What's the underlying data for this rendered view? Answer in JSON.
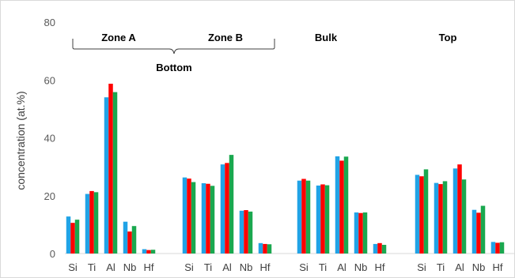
{
  "chart_data": {
    "type": "bar",
    "ylabel": "concentration (at.%)",
    "ylim": [
      0,
      80
    ],
    "yticks": [
      "0",
      "20",
      "40",
      "60",
      "80"
    ],
    "grid": false,
    "groups": [
      {
        "categories": [
          "Si",
          "Ti",
          "Al",
          "Nb",
          "Hf"
        ],
        "values": [
          [
            12.8,
            10.6,
            11.7
          ],
          [
            20.6,
            21.6,
            21.2
          ],
          [
            54.0,
            58.7,
            55.8
          ],
          [
            11.0,
            7.6,
            9.5
          ],
          [
            1.5,
            1.2,
            1.3
          ]
        ]
      },
      {
        "categories": [
          "Si",
          "Ti",
          "Al",
          "Nb",
          "Hf"
        ],
        "values": [
          [
            26.3,
            25.9,
            24.7
          ],
          [
            24.3,
            24.1,
            23.4
          ],
          [
            30.8,
            31.3,
            34.1
          ],
          [
            14.8,
            15.0,
            14.5
          ],
          [
            3.6,
            3.3,
            3.2
          ]
        ]
      },
      {
        "categories": [
          "Si",
          "Ti",
          "Al",
          "Nb",
          "Hf"
        ],
        "values": [
          [
            25.2,
            25.8,
            25.2
          ],
          [
            23.5,
            23.9,
            23.6
          ],
          [
            33.6,
            32.1,
            33.5
          ],
          [
            14.2,
            14.0,
            14.2
          ],
          [
            3.3,
            3.6,
            3.0
          ]
        ]
      },
      {
        "categories": [
          "Si",
          "Ti",
          "Al",
          "Nb",
          "Hf"
        ],
        "values": [
          [
            27.2,
            26.7,
            29.1
          ],
          [
            24.4,
            24.0,
            25.0
          ],
          [
            29.4,
            30.8,
            25.6
          ],
          [
            15.1,
            14.1,
            16.5
          ],
          [
            4.0,
            3.7,
            3.9
          ]
        ]
      }
    ],
    "colors": [
      "#21a3e6",
      "#ff0000",
      "#1aa84f"
    ],
    "annotations": {
      "zone_a": "Zone A",
      "zone_b": "Zone B",
      "bottom": "Bottom",
      "bulk": "Bulk",
      "top": "Top"
    }
  }
}
